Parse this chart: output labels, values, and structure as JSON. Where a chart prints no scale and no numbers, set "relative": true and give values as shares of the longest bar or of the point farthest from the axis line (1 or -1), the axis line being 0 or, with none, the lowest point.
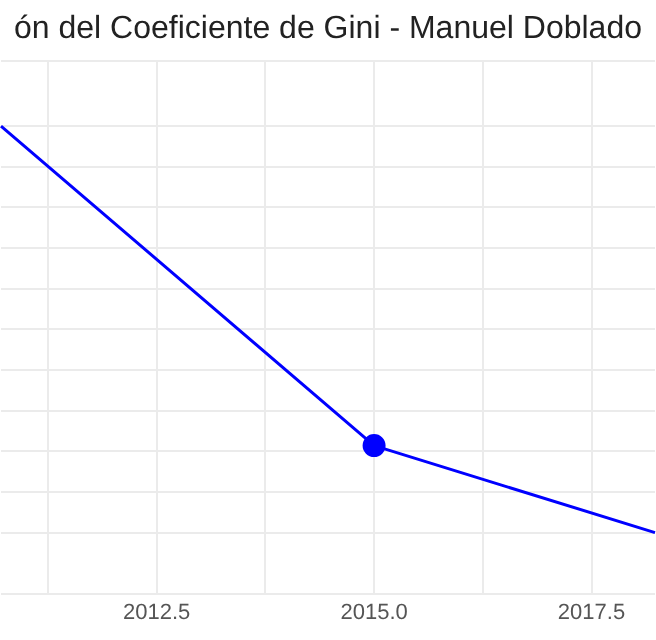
{
  "chart_data": {
    "type": "line",
    "title": "ón del Coeficiente de Gini - Manuel Doblado",
    "relative": true,
    "x": [
      2010.71,
      2015,
      2018.23
    ],
    "series": [
      {
        "color": "#0000ff",
        "marker": "none",
        "values": [
          1,
          0.214,
          0
        ]
      },
      {
        "type": "scatter",
        "color": "#0000ff",
        "marker": "circle",
        "x": [
          2015
        ],
        "values": [
          0.214
        ]
      }
    ],
    "xlim": [
      2010.71,
      2018.23
    ],
    "xticks": [
      {
        "value": 2011.25,
        "label": null
      },
      {
        "value": 2012.5,
        "label": "2012.5"
      },
      {
        "value": 2013.75,
        "label": null
      },
      {
        "value": 2015,
        "label": "2015.0"
      },
      {
        "value": 2016.25,
        "label": null
      },
      {
        "value": 2017.5,
        "label": "2017.5"
      }
    ],
    "grid": true,
    "legend": false,
    "line_style": "solid"
  }
}
